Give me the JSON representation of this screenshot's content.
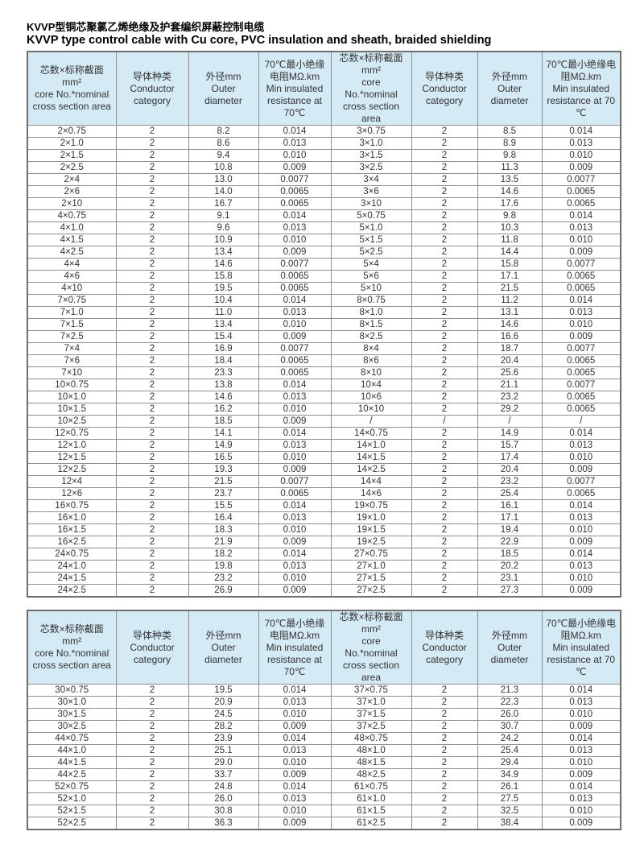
{
  "title_zh": "KVVP型铜芯聚氯乙烯绝缘及护套编织屏蔽控制电缆",
  "title_en": "KVVP type control cable with Cu core, PVC insulation and sheath, braided shielding",
  "colors": {
    "header_bg": "#d4eaf4",
    "grid_border": "#8f8f8f",
    "outer_border": "#6e6e6e",
    "text": "#333333"
  },
  "columns": [
    {
      "id": "core-left",
      "label": "芯数×标称截面\nmm²\ncore No.*nominal\ncross section area"
    },
    {
      "id": "conductor-left",
      "label": "导体种类\nConductor\ncategory"
    },
    {
      "id": "diameter-left",
      "label": "外径mm\nOuter\ndiameter"
    },
    {
      "id": "resistance-left",
      "label": "70℃最小绝缘\n电阻MΩ.km\nMin insulated\nresistance at\n70℃"
    },
    {
      "id": "core-right",
      "label": "芯数×标称截面\nmm²\ncore\nNo.*nominal\ncross section\narea"
    },
    {
      "id": "conductor-right",
      "label": "导体种类\nConductor\ncategory"
    },
    {
      "id": "diameter-right",
      "label": "外径mm\nOuter\ndiameter"
    },
    {
      "id": "resistance-right",
      "label": "70℃最小绝缘电\n阻MΩ.km\nMin insulated\nresistance at 70\n℃"
    }
  ],
  "tables": [
    {
      "name": "kvvp-spec-table-1",
      "rows": [
        [
          "2×0.75",
          "2",
          "8.2",
          "0.014",
          "3×0.75",
          "2",
          "8.5",
          "0.014"
        ],
        [
          "2×1.0",
          "2",
          "8.6",
          "0.013",
          "3×1.0",
          "2",
          "8.9",
          "0.013"
        ],
        [
          "2×1.5",
          "2",
          "9.4",
          "0.010",
          "3×1.5",
          "2",
          "9.8",
          "0.010"
        ],
        [
          "2×2.5",
          "2",
          "10.8",
          "0.009",
          "3×2.5",
          "2",
          "11.3",
          "0.009"
        ],
        [
          "2×4",
          "2",
          "13.0",
          "0.0077",
          "3×4",
          "2",
          "13.5",
          "0.0077"
        ],
        [
          "2×6",
          "2",
          "14.0",
          "0.0065",
          "3×6",
          "2",
          "14.6",
          "0.0065"
        ],
        [
          "2×10",
          "2",
          "16.7",
          "0.0065",
          "3×10",
          "2",
          "17.6",
          "0.0065"
        ],
        [
          "4×0.75",
          "2",
          "9.1",
          "0.014",
          "5×0.75",
          "2",
          "9.8",
          "0.014"
        ],
        [
          "4×1.0",
          "2",
          "9.6",
          "0.013",
          "5×1.0",
          "2",
          "10.3",
          "0.013"
        ],
        [
          "4×1.5",
          "2",
          "10.9",
          "0.010",
          "5×1.5",
          "2",
          "11.8",
          "0.010"
        ],
        [
          "4×2.5",
          "2",
          "13.4",
          "0.009",
          "5×2.5",
          "2",
          "14.4",
          "0.009"
        ],
        [
          "4×4",
          "2",
          "14.6",
          "0.0077",
          "5×4",
          "2",
          "15.8",
          "0.0077"
        ],
        [
          "4×6",
          "2",
          "15.8",
          "0.0065",
          "5×6",
          "2",
          "17.1",
          "0.0065"
        ],
        [
          "4×10",
          "2",
          "19.5",
          "0.0065",
          "5×10",
          "2",
          "21.5",
          "0.0065"
        ],
        [
          "7×0.75",
          "2",
          "10.4",
          "0.014",
          "8×0.75",
          "2",
          "11.2",
          "0.014"
        ],
        [
          "7×1.0",
          "2",
          "11.0",
          "0.013",
          "8×1.0",
          "2",
          "13.1",
          "0.013"
        ],
        [
          "7×1.5",
          "2",
          "13.4",
          "0.010",
          "8×1.5",
          "2",
          "14.6",
          "0.010"
        ],
        [
          "7×2.5",
          "2",
          "15.4",
          "0.009",
          "8×2.5",
          "2",
          "16.6",
          "0.009"
        ],
        [
          "7×4",
          "2",
          "16.9",
          "0.0077",
          "8×4",
          "2",
          "18.7",
          "0.0077"
        ],
        [
          "7×6",
          "2",
          "18.4",
          "0.0065",
          "8×6",
          "2",
          "20.4",
          "0.0065"
        ],
        [
          "7×10",
          "2",
          "23.3",
          "0.0065",
          "8×10",
          "2",
          "25.6",
          "0.0065"
        ],
        [
          "10×0.75",
          "2",
          "13.8",
          "0.014",
          "10×4",
          "2",
          "21.1",
          "0.0077"
        ],
        [
          "10×1.0",
          "2",
          "14.6",
          "0.013",
          "10×6",
          "2",
          "23.2",
          "0.0065"
        ],
        [
          "10×1.5",
          "2",
          "16.2",
          "0.010",
          "10×10",
          "2",
          "29.2",
          "0.0065"
        ],
        [
          "10×2.5",
          "2",
          "18.5",
          "0.009",
          "/",
          "/",
          "/",
          "/"
        ],
        [
          "12×0.75",
          "2",
          "14.1",
          "0.014",
          "14×0.75",
          "2",
          "14.9",
          "0.014"
        ],
        [
          "12×1.0",
          "2",
          "14.9",
          "0.013",
          "14×1.0",
          "2",
          "15.7",
          "0.013"
        ],
        [
          "12×1.5",
          "2",
          "16.5",
          "0.010",
          "14×1.5",
          "2",
          "17.4",
          "0.010"
        ],
        [
          "12×2.5",
          "2",
          "19.3",
          "0.009",
          "14×2.5",
          "2",
          "20.4",
          "0.009"
        ],
        [
          "12×4",
          "2",
          "21.5",
          "0.0077",
          "14×4",
          "2",
          "23.2",
          "0.0077"
        ],
        [
          "12×6",
          "2",
          "23.7",
          "0.0065",
          "14×6",
          "2",
          "25.4",
          "0.0065"
        ],
        [
          "16×0.75",
          "2",
          "15.5",
          "0.014",
          "19×0.75",
          "2",
          "16.1",
          "0.014"
        ],
        [
          "16×1.0",
          "2",
          "16.4",
          "0.013",
          "19×1.0",
          "2",
          "17.1",
          "0.013"
        ],
        [
          "16×1.5",
          "2",
          "18.3",
          "0.010",
          "19×1.5",
          "2",
          "19.4",
          "0.010"
        ],
        [
          "16×2.5",
          "2",
          "21.9",
          "0.009",
          "19×2.5",
          "2",
          "22.9",
          "0.009"
        ],
        [
          "24×0.75",
          "2",
          "18.2",
          "0.014",
          "27×0.75",
          "2",
          "18.5",
          "0.014"
        ],
        [
          "24×1.0",
          "2",
          "19.8",
          "0.013",
          "27×1.0",
          "2",
          "20.2",
          "0.013"
        ],
        [
          "24×1.5",
          "2",
          "23.2",
          "0.010",
          "27×1.5",
          "2",
          "23.1",
          "0.010"
        ],
        [
          "24×2.5",
          "2",
          "26.9",
          "0.009",
          "27×2.5",
          "2",
          "27.3",
          "0.009"
        ]
      ]
    },
    {
      "name": "kvvp-spec-table-2",
      "rows": [
        [
          "30×0.75",
          "2",
          "19.5",
          "0.014",
          "37×0.75",
          "2",
          "21.3",
          "0.014"
        ],
        [
          "30×1.0",
          "2",
          "20.9",
          "0.013",
          "37×1.0",
          "2",
          "22.3",
          "0.013"
        ],
        [
          "30×1.5",
          "2",
          "24.5",
          "0.010",
          "37×1.5",
          "2",
          "26.0",
          "0.010"
        ],
        [
          "30×2.5",
          "2",
          "28.2",
          "0.009",
          "37×2.5",
          "2",
          "30.7",
          "0.009"
        ],
        [
          "44×0.75",
          "2",
          "23.9",
          "0.014",
          "48×0.75",
          "2",
          "24.2",
          "0.014"
        ],
        [
          "44×1.0",
          "2",
          "25.1",
          "0.013",
          "48×1.0",
          "2",
          "25.4",
          "0.013"
        ],
        [
          "44×1.5",
          "2",
          "29.0",
          "0.010",
          "48×1.5",
          "2",
          "29.4",
          "0.010"
        ],
        [
          "44×2.5",
          "2",
          "33.7",
          "0.009",
          "48×2.5",
          "2",
          "34.9",
          "0.009"
        ],
        [
          "52×0.75",
          "2",
          "24.8",
          "0.014",
          "61×0.75",
          "2",
          "26.1",
          "0.014"
        ],
        [
          "52×1.0",
          "2",
          "26.0",
          "0.013",
          "61×1.0",
          "2",
          "27.5",
          "0.013"
        ],
        [
          "52×1.5",
          "2",
          "30.8",
          "0.010",
          "61×1.5",
          "2",
          "32.5",
          "0.010"
        ],
        [
          "52×2.5",
          "2",
          "36.3",
          "0.009",
          "61×2.5",
          "2",
          "38.4",
          "0.009"
        ]
      ]
    }
  ]
}
